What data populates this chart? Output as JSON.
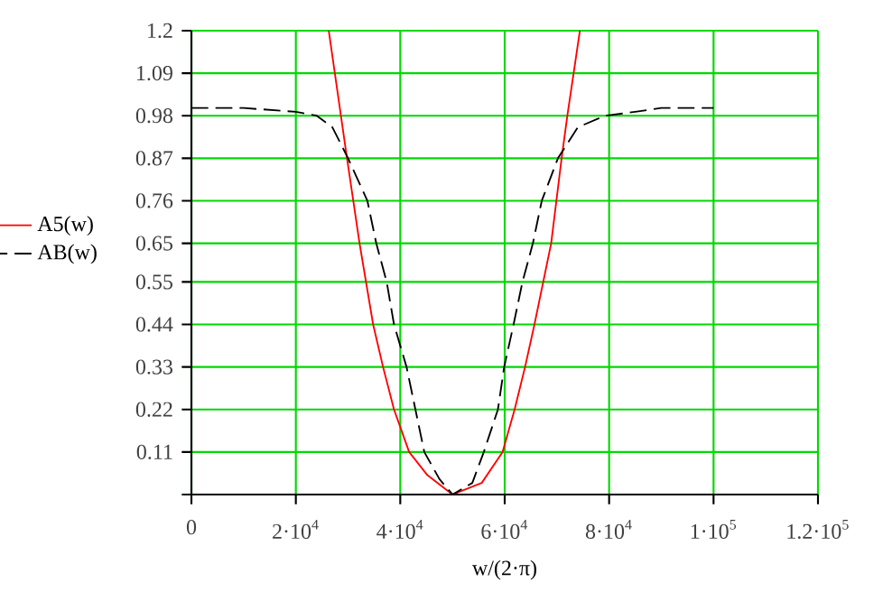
{
  "chart_data": {
    "type": "line",
    "xlabel": "w/(2·π)",
    "xlim": [
      0,
      120000
    ],
    "ylim": [
      0,
      1.2
    ],
    "xticks": [
      0,
      {
        "value": 20000,
        "label": "2·10$^{4}$"
      },
      {
        "value": 40000,
        "label": "4·10$^{4}$"
      },
      {
        "value": 60000,
        "label": "6·10$^{4}$"
      },
      {
        "value": 80000,
        "label": "8·10$^{4}$"
      },
      {
        "value": 100000,
        "label": "1·10$^{5}$"
      },
      {
        "value": 120000,
        "label": "1.2·10$^{5}$"
      }
    ],
    "yticks": [
      {
        "value": 0,
        "label": null
      },
      0.11,
      0.22,
      0.33,
      0.44,
      0.55,
      0.65,
      0.76,
      0.87,
      0.98,
      1.09,
      1.2
    ],
    "grid": true,
    "legend": "left",
    "marker": "none",
    "series": [
      {
        "name": "A5(w)",
        "color": "#ff0000",
        "line_style": "solid",
        "x": [
          26300,
          29800,
          32200,
          34800,
          36700,
          38800,
          41700,
          45200,
          50000,
          55600,
          59600,
          61900,
          63900,
          65700,
          68900,
          70900,
          72000,
          74400
        ],
        "values": [
          1.2,
          0.87,
          0.65,
          0.44,
          0.33,
          0.22,
          0.11,
          0.05,
          0,
          0.03,
          0.11,
          0.22,
          0.33,
          0.44,
          0.65,
          0.87,
          0.98,
          1.2
        ]
      },
      {
        "name": "AB(w)",
        "color": "#000000",
        "line_style": "dashed",
        "x": [
          0,
          10000,
          20000,
          24000,
          27000,
          30000,
          33700,
          35400,
          37400,
          38800,
          41200,
          42900,
          44600,
          47500,
          50000,
          53800,
          56000,
          58700,
          59900,
          61700,
          63400,
          65400,
          67100,
          70200,
          74000,
          79200,
          85000,
          90000,
          100000
        ],
        "values": [
          1.0,
          1.0,
          0.99,
          0.98,
          0.95,
          0.87,
          0.76,
          0.65,
          0.55,
          0.44,
          0.33,
          0.22,
          0.11,
          0.04,
          0,
          0.03,
          0.11,
          0.22,
          0.33,
          0.44,
          0.55,
          0.65,
          0.76,
          0.87,
          0.95,
          0.98,
          0.99,
          1.0,
          1.0
        ]
      }
    ]
  }
}
